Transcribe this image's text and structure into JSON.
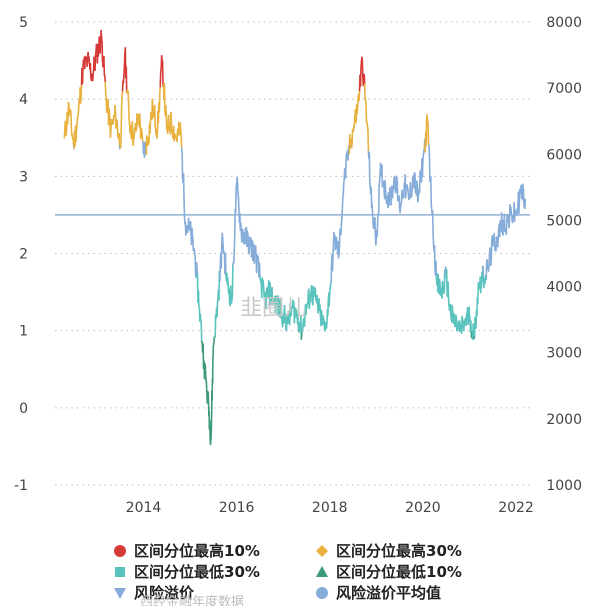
{
  "chart_data": {
    "type": "line",
    "title": "",
    "xlabel": "",
    "ylabel": "",
    "xlim": [
      2012.1,
      2022.3
    ],
    "ylim_left": [
      -1,
      5
    ],
    "ylim_right": [
      1000,
      8000
    ],
    "x_ticks": [
      2014,
      2016,
      2018,
      2020,
      2022
    ],
    "x_tick_labels": [
      "2014",
      "2016",
      "2018",
      "2020",
      "2022"
    ],
    "y_left_ticks": [
      -1,
      0,
      1,
      2,
      3,
      4,
      5
    ],
    "y_left_tick_labels": [
      "-1",
      "0",
      "1",
      "2",
      "3",
      "4",
      "5"
    ],
    "y_right_ticks": [
      1000,
      2000,
      3000,
      4000,
      5000,
      6000,
      7000,
      8000
    ],
    "y_right_tick_labels": [
      "1000",
      "2000",
      "3000",
      "4000",
      "5000",
      "6000",
      "7000",
      "8000"
    ],
    "grid": "horizontal dotted",
    "legend_position": "bottom",
    "average_line": {
      "y": 2.5,
      "color": "#8fb0d0"
    },
    "series": [
      {
        "name": "风险溢价",
        "color_key": "band",
        "x": [
          2012.3,
          2012.4,
          2012.5,
          2012.6,
          2012.7,
          2012.8,
          2012.9,
          2013.0,
          2013.1,
          2013.2,
          2013.3,
          2013.4,
          2013.5,
          2013.6,
          2013.7,
          2013.8,
          2013.9,
          2014.0,
          2014.1,
          2014.2,
          2014.3,
          2014.4,
          2014.5,
          2014.6,
          2014.7,
          2014.8,
          2014.9,
          2015.0,
          2015.1,
          2015.2,
          2015.3,
          2015.4,
          2015.45,
          2015.5,
          2015.6,
          2015.7,
          2015.8,
          2015.9,
          2016.0,
          2016.1,
          2016.2,
          2016.3,
          2016.4,
          2016.5,
          2016.6,
          2016.7,
          2016.8,
          2016.9,
          2017.0,
          2017.1,
          2017.2,
          2017.3,
          2017.4,
          2017.5,
          2017.6,
          2017.7,
          2017.8,
          2017.9,
          2018.0,
          2018.1,
          2018.2,
          2018.3,
          2018.4,
          2018.5,
          2018.6,
          2018.7,
          2018.8,
          2018.9,
          2019.0,
          2019.1,
          2019.2,
          2019.3,
          2019.4,
          2019.5,
          2019.6,
          2019.7,
          2019.8,
          2019.9,
          2020.0,
          2020.1,
          2020.2,
          2020.3,
          2020.4,
          2020.5,
          2020.6,
          2020.7,
          2020.8,
          2020.9,
          2021.0,
          2021.1,
          2021.2,
          2021.3,
          2021.4,
          2021.5,
          2021.6,
          2021.7,
          2021.8,
          2021.9,
          2022.0,
          2022.1,
          2022.2
        ],
        "values": [
          3.5,
          3.9,
          3.4,
          3.8,
          4.4,
          4.5,
          4.3,
          4.6,
          4.8,
          4.0,
          3.6,
          3.8,
          3.4,
          4.6,
          3.7,
          3.5,
          3.8,
          3.3,
          3.5,
          3.9,
          3.6,
          4.5,
          3.6,
          3.7,
          3.5,
          3.6,
          2.4,
          2.3,
          2.0,
          1.3,
          0.6,
          0.0,
          -0.4,
          0.8,
          1.4,
          2.2,
          1.6,
          1.4,
          2.9,
          2.3,
          2.2,
          2.1,
          2.0,
          1.7,
          1.4,
          1.5,
          1.4,
          1.3,
          1.2,
          1.1,
          1.3,
          1.2,
          1.0,
          1.3,
          1.5,
          1.4,
          1.2,
          1.0,
          1.5,
          2.2,
          2.0,
          2.9,
          3.3,
          3.6,
          3.9,
          4.5,
          3.7,
          2.6,
          2.2,
          3.1,
          2.8,
          2.7,
          3.0,
          2.6,
          2.9,
          2.7,
          3.0,
          2.7,
          3.2,
          3.7,
          2.5,
          1.6,
          1.5,
          1.7,
          1.2,
          1.1,
          1.0,
          1.1,
          1.2,
          0.9,
          1.6,
          1.7,
          1.8,
          2.1,
          2.2,
          2.4,
          2.4,
          2.5,
          2.5,
          2.8,
          2.7
        ]
      },
      {
        "name": "风险溢价平均值",
        "value": 2.5
      }
    ],
    "bands": [
      {
        "name": "区间分位最高10%",
        "color": "#d63a37",
        "marker": "circle",
        "above": 4.15
      },
      {
        "name": "区间分位最高30%",
        "color": "#e9b13f",
        "marker": "diamond",
        "above": 3.4
      },
      {
        "name": "区间分位最低30%",
        "color": "#5bc3bd",
        "marker": "square",
        "below": 1.75
      },
      {
        "name": "区间分位最低10%",
        "color": "#3e9a78",
        "marker": "triangle-up",
        "below": 0.95
      }
    ],
    "default_series_color": "#86acd9",
    "watermark": "韭圈儿",
    "footer_partial": "西经金融年度数据"
  }
}
